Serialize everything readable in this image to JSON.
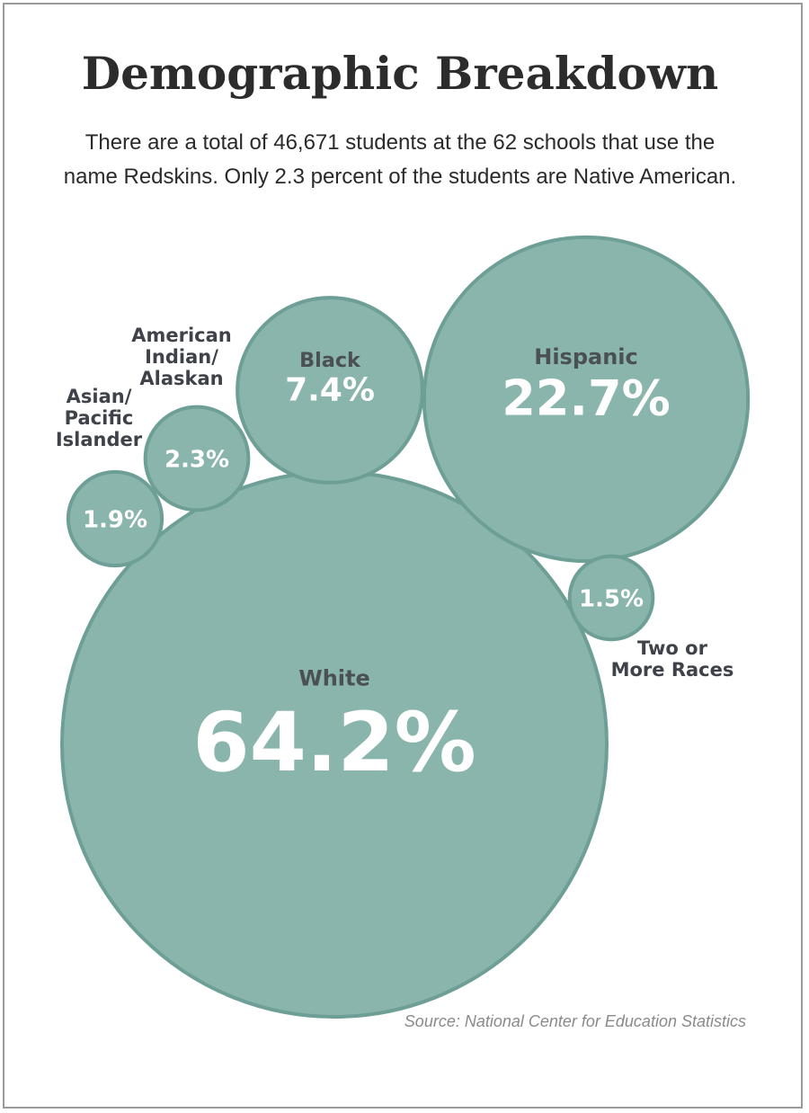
{
  "header": {
    "title": "Demographic Breakdown",
    "subtitle": "There are a total of 46,671 students at the 62 schools that use the name Redskins. Only 2.3 percent of the students are Native American."
  },
  "colors": {
    "bubble_fill": "#8ab5ac",
    "bubble_stroke": "#6e9f96",
    "category_text": "#4b4f56",
    "value_text": "#ffffff"
  },
  "chart_data": {
    "type": "bubble",
    "unit": "%",
    "categories": [
      "White",
      "Hispanic",
      "Black",
      "American Indian/ Alaskan",
      "Asian/ Pacific Islander",
      "Two or More Races"
    ],
    "values": [
      64.2,
      22.7,
      7.4,
      2.3,
      1.9,
      1.5
    ],
    "value_labels": [
      "64.2%",
      "22.7%",
      "7.4%",
      "2.3%",
      "1.9%",
      "1.5%"
    ],
    "label_lines": [
      [
        "White"
      ],
      [
        "Hispanic"
      ],
      [
        "Black"
      ],
      [
        "American",
        "Indian/",
        "Alaskan"
      ],
      [
        "Asian/",
        "Pacific",
        "Islander"
      ],
      [
        "Two or",
        "More Races"
      ]
    ],
    "label_placement": [
      "inside",
      "inside",
      "inside",
      "outside-above",
      "outside-above",
      "outside-below"
    ]
  },
  "source": "Source: National Center for Education Statistics"
}
